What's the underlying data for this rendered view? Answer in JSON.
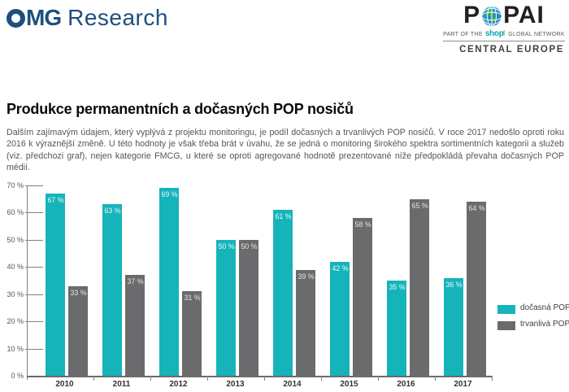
{
  "header": {
    "omg_logo": {
      "o": "O",
      "mg": "MG",
      "research": "Research",
      "color": "#1e4e7d"
    },
    "popai_logo": {
      "word_part1": "P",
      "word_part2": "PAI",
      "tagline_prefix": "PART OF THE",
      "brand_word": "shop",
      "brand_bang": "!",
      "tagline_suffix": "GLOBAL NETWORK",
      "region": "CENTRAL EUROPE"
    }
  },
  "article": {
    "title": "Produkce permanentních a dočasných POP nosičů",
    "body": "Dalším zajímavým údajem, který vyplývá z projektu monitoringu, je podíl dočasných a trvanlivých POP nosičů. V roce 2017 nedošlo oproti roku 2016 k výraznější změně. U této hodnoty je však třeba brát v úvahu, že se jedná o monitoring širokého spektra sortimentních kategorii a služeb (viz. předchozi graf), nejen kategorie FMCG, u které se oproti agregované hodnotě prezentované níže předpokládá převaha dočasných POP médií."
  },
  "chart_data": {
    "type": "bar",
    "title": "",
    "categories": [
      "2010",
      "2011",
      "2012",
      "2013",
      "2014",
      "2015",
      "2016",
      "2017"
    ],
    "series": [
      {
        "name": "dočasná POP",
        "color": "#15b4bb",
        "label_color": "#edf7f7",
        "values": [
          67,
          63,
          69,
          50,
          61,
          42,
          35,
          36
        ]
      },
      {
        "name": "trvanlivá POP",
        "color": "#6b6b6e",
        "label_color": "#e4e4e4",
        "values": [
          33,
          37,
          31,
          50,
          39,
          58,
          65,
          64
        ]
      }
    ],
    "value_suffix": " %",
    "xlabel": "",
    "ylabel": "",
    "ylim": [
      0,
      70
    ],
    "ytick_step": 10,
    "grid": false,
    "legend_position": "right",
    "axis_color": "#808080",
    "baseline_color": "#6b6b6b",
    "tick_label_color": "#555555",
    "category_label_color": "#333333",
    "legend_text_color": "#3f3f3f"
  }
}
